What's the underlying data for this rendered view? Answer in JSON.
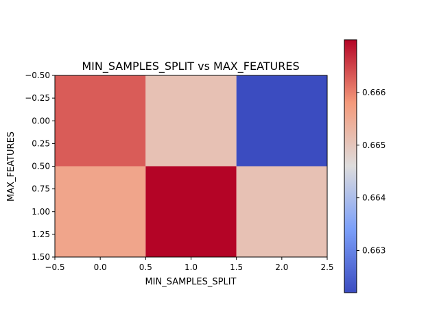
{
  "chart_data": {
    "type": "heatmap",
    "title": "MIN_SAMPLES_SPLIT vs MAX_FEATURES",
    "xlabel": "MIN_SAMPLES_SPLIT",
    "ylabel": "MAX_FEATURES",
    "xlim": [
      -0.5,
      2.5
    ],
    "ylim": [
      1.5,
      -0.5
    ],
    "x_ticks": [
      "−0.5",
      "0.0",
      "0.5",
      "1.0",
      "1.5",
      "2.0",
      "2.5"
    ],
    "y_ticks": [
      "−0.50",
      "−0.25",
      "0.00",
      "0.25",
      "0.50",
      "0.75",
      "1.00",
      "1.25",
      "1.50"
    ],
    "values": [
      [
        0.6663,
        0.6651,
        0.6622
      ],
      [
        0.6656,
        0.667,
        0.6651
      ]
    ],
    "colormap": "coolwarm",
    "colorbar": {
      "min": 0.6622,
      "max": 0.667,
      "ticks": [
        "0.663",
        "0.664",
        "0.665",
        "0.666"
      ]
    }
  }
}
